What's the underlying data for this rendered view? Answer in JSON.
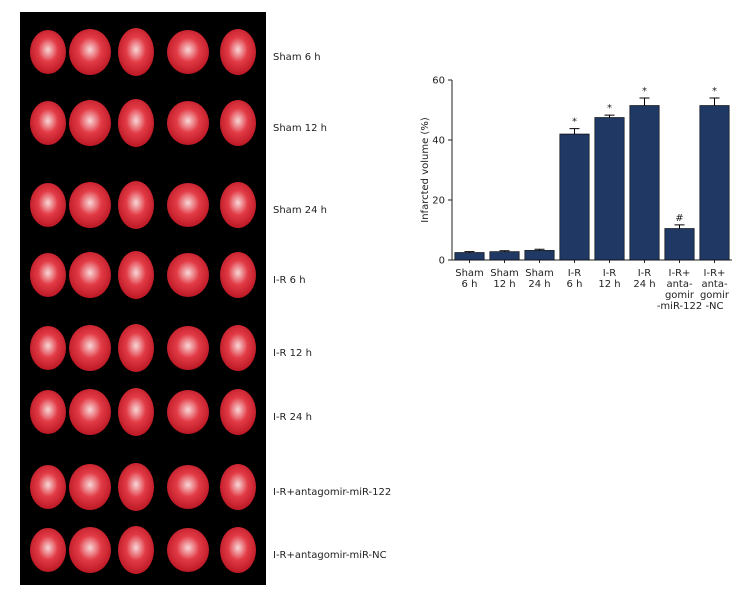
{
  "figure_panel": {
    "row_labels": [
      "Sham 6 h",
      "Sham 12 h",
      "Sham 24 h",
      "I-R 6 h",
      "I-R 12 h",
      "I-R  24 h",
      "I-R+antagomir-miR-122",
      "I-R+antagomir-miR-NC"
    ]
  },
  "chart_data": {
    "type": "bar",
    "y_label": "Infarcted volume (%)",
    "categories": [
      "Sham\n6 h",
      "Sham\n12 h",
      "Sham\n24 h",
      "I-R\n6 h",
      "I-R\n12 h",
      "I-R\n24 h",
      "I-R+\nanta-\ngomir\n-miR-122",
      "I-R+\nanta-\ngomir\n-NC"
    ],
    "values": [
      2.5,
      2.8,
      3.2,
      42,
      47.5,
      51.5,
      10.5,
      51.5
    ],
    "errors": [
      0.3,
      0.3,
      0.4,
      1.8,
      0.8,
      2.5,
      1.2,
      2.5
    ],
    "annotations": [
      null,
      null,
      null,
      "*",
      "*",
      "*",
      "#",
      "*"
    ],
    "color": "#1f3864",
    "ylim": [
      0,
      60
    ],
    "yticks": [
      0,
      20,
      40,
      60
    ],
    "grid": false
  }
}
